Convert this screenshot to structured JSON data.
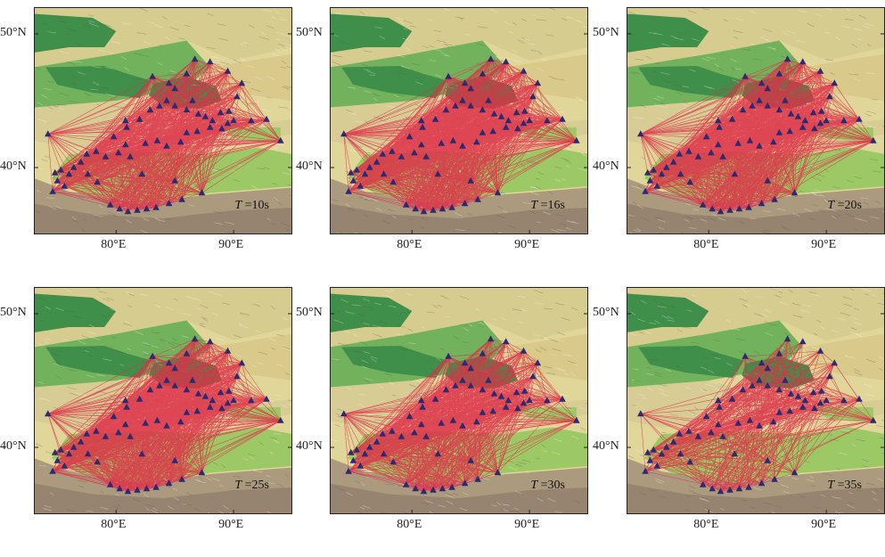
{
  "figure": {
    "extent": {
      "lon_min": 73,
      "lon_max": 95,
      "lat_min": 35,
      "lat_max": 52
    },
    "lat_labels": [
      {
        "value": 50,
        "text": "50°N"
      },
      {
        "value": 40,
        "text": "40°N"
      }
    ],
    "lon_labels": [
      {
        "value": 80,
        "text": "80°E"
      },
      {
        "value": 90,
        "text": "90°E"
      }
    ],
    "colors": {
      "path": "#e0304a",
      "station": "#2e2a72",
      "basin_dark": "#3f8e49",
      "lowland": "#73b25c",
      "basin_floor": "#9cc966",
      "uplands": "#e1d699",
      "mountains": "#ab9a7e"
    },
    "stations": [
      [
        74.2,
        42.5
      ],
      [
        74.8,
        39.6
      ],
      [
        75.3,
        39.8
      ],
      [
        75.0,
        39.0
      ],
      [
        74.6,
        38.2
      ],
      [
        75.6,
        38.6
      ],
      [
        76.0,
        39.5
      ],
      [
        76.4,
        40.0
      ],
      [
        77.0,
        40.4
      ],
      [
        77.5,
        41.0
      ],
      [
        78.3,
        41.2
      ],
      [
        79.1,
        40.8
      ],
      [
        80.2,
        41.1
      ],
      [
        80.8,
        41.7
      ],
      [
        81.2,
        40.8
      ],
      [
        82.5,
        41.8
      ],
      [
        83.5,
        42.0
      ],
      [
        84.3,
        41.6
      ],
      [
        85.5,
        41.9
      ],
      [
        86.0,
        42.6
      ],
      [
        86.9,
        42.7
      ],
      [
        88.0,
        43.0
      ],
      [
        89.0,
        42.9
      ],
      [
        89.5,
        43.3
      ],
      [
        90.0,
        43.5
      ],
      [
        91.5,
        43.5
      ],
      [
        92.8,
        43.6
      ],
      [
        94.0,
        42.0
      ],
      [
        80.9,
        43.0
      ],
      [
        82.0,
        43.6
      ],
      [
        82.9,
        44.3
      ],
      [
        83.7,
        44.6
      ],
      [
        84.3,
        45.0
      ],
      [
        85.0,
        44.6
      ],
      [
        86.0,
        44.3
      ],
      [
        87.0,
        44.0
      ],
      [
        87.6,
        43.8
      ],
      [
        88.2,
        43.5
      ],
      [
        88.9,
        44.1
      ],
      [
        89.6,
        44.2
      ],
      [
        90.3,
        45.3
      ],
      [
        83.1,
        46.8
      ],
      [
        84.5,
        46.3
      ],
      [
        86.0,
        47.0
      ],
      [
        86.7,
        48.1
      ],
      [
        88.0,
        47.9
      ],
      [
        89.5,
        47.2
      ],
      [
        90.7,
        46.3
      ],
      [
        85.0,
        45.9
      ],
      [
        86.5,
        45.0
      ],
      [
        79.5,
        37.2
      ],
      [
        80.3,
        36.9
      ],
      [
        81.0,
        36.7
      ],
      [
        81.8,
        36.8
      ],
      [
        82.6,
        36.9
      ],
      [
        83.4,
        37.0
      ],
      [
        84.5,
        37.3
      ],
      [
        85.6,
        37.6
      ],
      [
        87.3,
        38.1
      ],
      [
        78.4,
        38.9
      ],
      [
        77.6,
        39.5
      ],
      [
        82.2,
        39.5
      ],
      [
        85.0,
        39.0
      ],
      [
        79.8,
        42.3
      ],
      [
        80.8,
        43.5
      ]
    ],
    "panels": [
      {
        "period_prefix": "T",
        "period_value": " =10s",
        "density": 0.4
      },
      {
        "period_prefix": "T",
        "period_value": " =16s",
        "density": 0.62
      },
      {
        "period_prefix": "T",
        "period_value": " =20s",
        "density": 0.56
      },
      {
        "period_prefix": "T",
        "period_value": " =25s",
        "density": 0.6
      },
      {
        "period_prefix": "T",
        "period_value": " =30s",
        "density": 0.42
      },
      {
        "period_prefix": "T",
        "period_value": " =35s",
        "density": 0.24
      }
    ]
  }
}
